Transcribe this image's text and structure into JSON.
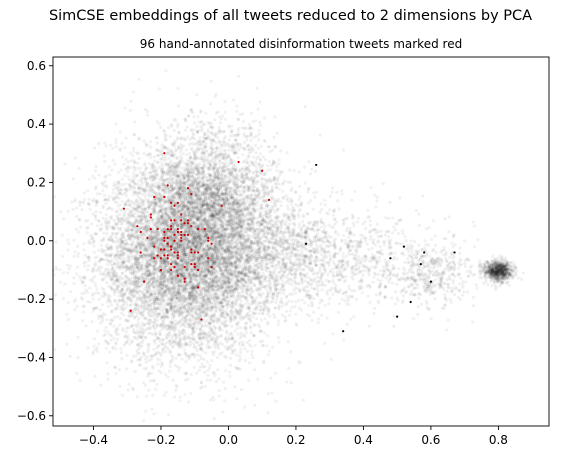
{
  "chart_data": {
    "type": "scatter",
    "title": "SimCSE embeddings of all tweets reduced to 2 dimensions by PCA",
    "subtitle": "96 hand-annotated disinformation tweets marked red",
    "xlabel": "",
    "ylabel": "",
    "xlim": [
      -0.52,
      0.95
    ],
    "ylim": [
      -0.635,
      0.63
    ],
    "xticks": [
      -0.4,
      -0.2,
      0.0,
      0.2,
      0.4,
      0.6,
      0.8
    ],
    "xtick_labels": [
      "−0.4",
      "−0.2",
      "0.0",
      "0.2",
      "0.4",
      "0.6",
      "0.8"
    ],
    "yticks": [
      -0.6,
      -0.4,
      -0.2,
      0.0,
      0.2,
      0.4,
      0.6
    ],
    "ytick_labels": [
      "−0.6",
      "−0.4",
      "−0.2",
      "0.0",
      "0.2",
      "0.4",
      "0.6"
    ],
    "grid": false,
    "colors": {
      "all_tweets": "#000000",
      "disinformation": "#cc0000"
    },
    "series": [
      {
        "name": "all tweets",
        "color": "#000000",
        "density_clusters": [
          {
            "cx": -0.13,
            "cy": -0.06,
            "sx": 0.13,
            "sy": 0.17,
            "weight": 0.58
          },
          {
            "cx": -0.05,
            "cy": 0.14,
            "sx": 0.1,
            "sy": 0.13,
            "weight": 0.18
          },
          {
            "cx": 0.12,
            "cy": -0.04,
            "sx": 0.14,
            "sy": 0.1,
            "weight": 0.1
          },
          {
            "cx": 0.35,
            "cy": -0.06,
            "sx": 0.14,
            "sy": 0.08,
            "weight": 0.05
          },
          {
            "cx": 0.6,
            "cy": -0.12,
            "sx": 0.06,
            "sy": 0.06,
            "weight": 0.03
          },
          {
            "cx": 0.8,
            "cy": -0.105,
            "sx": 0.022,
            "sy": 0.018,
            "weight": 0.06
          }
        ],
        "outliers": [
          {
            "x": 0.52,
            "y": -0.02
          },
          {
            "x": 0.57,
            "y": -0.08
          },
          {
            "x": 0.54,
            "y": -0.21
          },
          {
            "x": 0.6,
            "y": -0.14
          },
          {
            "x": 0.67,
            "y": -0.04
          },
          {
            "x": 0.23,
            "y": -0.01
          },
          {
            "x": 0.26,
            "y": 0.26
          },
          {
            "x": 0.34,
            "y": -0.31
          },
          {
            "x": 0.5,
            "y": -0.26
          },
          {
            "x": 0.58,
            "y": -0.04
          },
          {
            "x": 0.48,
            "y": -0.06
          }
        ]
      },
      {
        "name": "disinformation tweets",
        "color": "#cc0000",
        "count": 96,
        "points": [
          {
            "x": -0.2,
            "y": -0.03
          },
          {
            "x": -0.12,
            "y": 0.07
          },
          {
            "x": -0.16,
            "y": -0.04
          },
          {
            "x": -0.24,
            "y": 0.01
          },
          {
            "x": -0.17,
            "y": 0.13
          },
          {
            "x": -0.15,
            "y": -0.12
          },
          {
            "x": -0.18,
            "y": -0.06
          },
          {
            "x": -0.22,
            "y": -0.02
          },
          {
            "x": -0.1,
            "y": -0.09
          },
          {
            "x": -0.15,
            "y": 0.03
          },
          {
            "x": -0.15,
            "y": 0.13
          },
          {
            "x": -0.18,
            "y": -0.05
          },
          {
            "x": -0.05,
            "y": -0.09
          },
          {
            "x": -0.17,
            "y": -0.03
          },
          {
            "x": -0.15,
            "y": -0.06
          },
          {
            "x": -0.12,
            "y": 0.18
          },
          {
            "x": -0.09,
            "y": -0.16
          },
          {
            "x": -0.14,
            "y": 0.01
          },
          {
            "x": -0.23,
            "y": 0.09
          },
          {
            "x": -0.17,
            "y": -0.1
          },
          {
            "x": -0.14,
            "y": -0.0
          },
          {
            "x": -0.14,
            "y": 0.09
          },
          {
            "x": -0.06,
            "y": 0.01
          },
          {
            "x": -0.18,
            "y": 0.01
          },
          {
            "x": -0.05,
            "y": -0.01
          },
          {
            "x": -0.17,
            "y": 0.04
          },
          {
            "x": -0.07,
            "y": 0.04
          },
          {
            "x": -0.17,
            "y": -0.02
          },
          {
            "x": -0.18,
            "y": 0.19
          },
          {
            "x": -0.15,
            "y": -0.04
          },
          {
            "x": -0.14,
            "y": 0.07
          },
          {
            "x": -0.13,
            "y": -0.09
          },
          {
            "x": -0.23,
            "y": 0.04
          },
          {
            "x": -0.11,
            "y": 0.05
          },
          {
            "x": -0.18,
            "y": 0.01
          },
          {
            "x": -0.17,
            "y": -0.02
          },
          {
            "x": -0.14,
            "y": 0.02
          },
          {
            "x": -0.06,
            "y": -0.0
          },
          {
            "x": -0.2,
            "y": -0.06
          },
          {
            "x": -0.19,
            "y": -0.05
          },
          {
            "x": -0.23,
            "y": 0.08
          },
          {
            "x": -0.17,
            "y": -0.08
          },
          {
            "x": -0.09,
            "y": 0.04
          },
          {
            "x": -0.15,
            "y": 0.03
          },
          {
            "x": -0.15,
            "y": -0.12
          },
          {
            "x": -0.18,
            "y": -0.01
          },
          {
            "x": -0.1,
            "y": -0.08
          },
          {
            "x": -0.17,
            "y": 0.05
          },
          {
            "x": -0.15,
            "y": 0.04
          },
          {
            "x": -0.27,
            "y": 0.05
          },
          {
            "x": -0.18,
            "y": 0.04
          },
          {
            "x": -0.12,
            "y": 0.06
          },
          {
            "x": -0.13,
            "y": 0.02
          },
          {
            "x": -0.11,
            "y": -0.08
          },
          {
            "x": -0.19,
            "y": 0.01
          },
          {
            "x": -0.16,
            "y": -0.09
          },
          {
            "x": -0.2,
            "y": -0.03
          },
          {
            "x": -0.17,
            "y": 0.07
          },
          {
            "x": -0.14,
            "y": 0.03
          },
          {
            "x": -0.16,
            "y": 0.07
          },
          {
            "x": -0.09,
            "y": -0.04
          },
          {
            "x": -0.15,
            "y": -0.05
          },
          {
            "x": -0.13,
            "y": -0.14
          },
          {
            "x": -0.16,
            "y": 0.12
          },
          {
            "x": -0.13,
            "y": 0.06
          },
          {
            "x": -0.2,
            "y": -0.1
          },
          {
            "x": -0.19,
            "y": 0.03
          },
          {
            "x": -0.12,
            "y": 0.02
          },
          {
            "x": -0.11,
            "y": -0.04
          },
          {
            "x": -0.21,
            "y": -0.05
          },
          {
            "x": -0.22,
            "y": -0.06
          },
          {
            "x": -0.13,
            "y": -0.13
          },
          {
            "x": -0.09,
            "y": -0.1
          },
          {
            "x": -0.16,
            "y": -0.04
          },
          {
            "x": -0.06,
            "y": -0.06
          },
          {
            "x": -0.16,
            "y": 0.0
          },
          {
            "x": -0.11,
            "y": -0.03
          },
          {
            "x": -0.19,
            "y": -0.03
          },
          {
            "x": -0.11,
            "y": 0.16
          },
          {
            "x": -0.19,
            "y": 0.15
          },
          {
            "x": -0.19,
            "y": -0.0
          },
          {
            "x": -0.26,
            "y": -0.04
          },
          {
            "x": -0.22,
            "y": 0.15
          },
          {
            "x": -0.26,
            "y": 0.03
          },
          {
            "x": -0.31,
            "y": 0.11
          },
          {
            "x": -0.21,
            "y": 0.04
          },
          {
            "x": -0.1,
            "y": -0.04
          },
          {
            "x": -0.16,
            "y": 0.02
          },
          {
            "x": -0.02,
            "y": 0.12
          },
          {
            "x": 0.1,
            "y": 0.24
          },
          {
            "x": 0.12,
            "y": 0.14
          },
          {
            "x": 0.03,
            "y": 0.27
          },
          {
            "x": -0.29,
            "y": -0.24
          },
          {
            "x": -0.08,
            "y": -0.27
          },
          {
            "x": -0.19,
            "y": 0.3
          },
          {
            "x": -0.25,
            "y": -0.14
          }
        ]
      }
    ]
  }
}
